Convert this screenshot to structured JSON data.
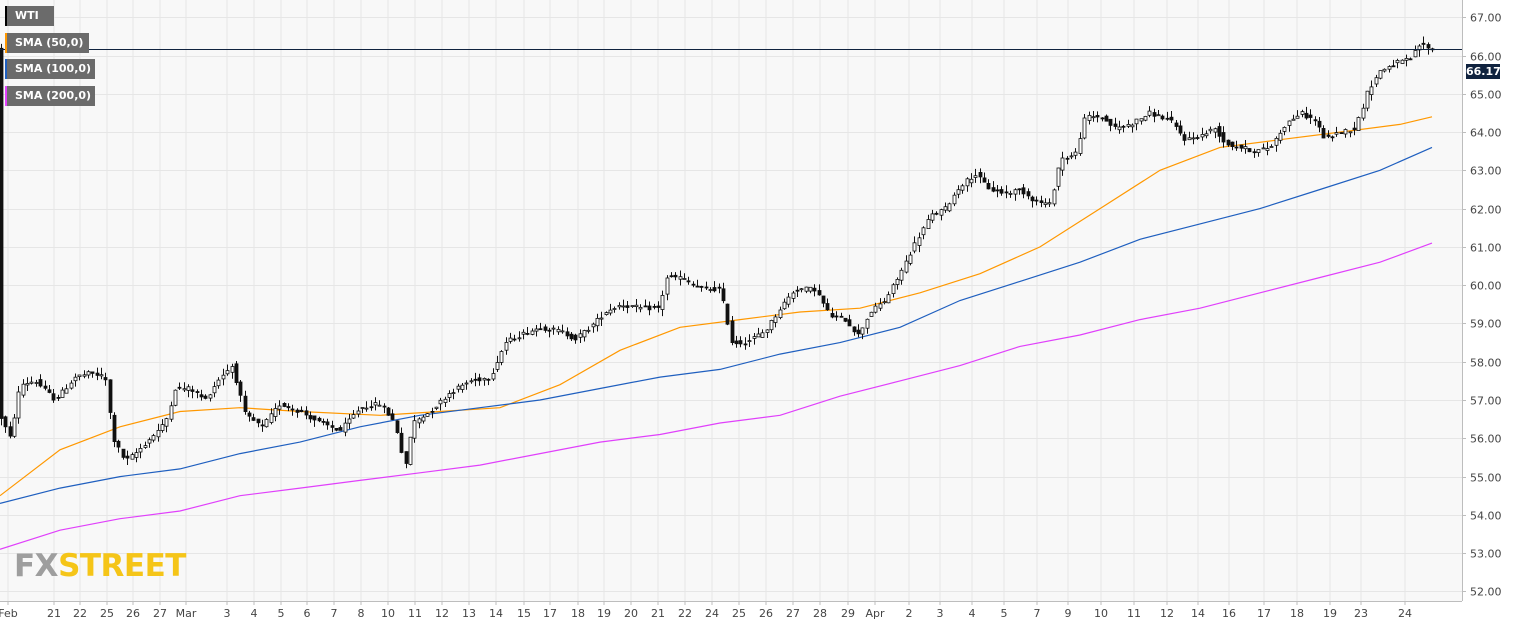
{
  "chart_data": {
    "type": "candlestick",
    "instrument": "WTI",
    "y_axis": {
      "ticks": [
        52.0,
        53.0,
        54.0,
        55.0,
        56.0,
        57.0,
        58.0,
        59.0,
        60.0,
        61.0,
        62.0,
        63.0,
        64.0,
        65.0,
        66.0,
        67.0
      ],
      "range": [
        51.75,
        67.45
      ],
      "side": "right"
    },
    "x_axis_labels": [
      "Feb",
      "21",
      "22",
      "25",
      "26",
      "27",
      "Mar",
      "3",
      "4",
      "5",
      "6",
      "7",
      "8",
      "10",
      "11",
      "12",
      "13",
      "14",
      "15",
      "17",
      "18",
      "19",
      "20",
      "21",
      "22",
      "24",
      "25",
      "26",
      "27",
      "28",
      "29",
      "Apr",
      "2",
      "3",
      "4",
      "5",
      "7",
      "9",
      "10",
      "11",
      "12",
      "14",
      "16",
      "17",
      "18",
      "19",
      "23",
      "24"
    ],
    "current_price": "66.17",
    "grid": true,
    "legend_position": "top-left",
    "legend": [
      {
        "label": "WTI",
        "color": "#000000"
      },
      {
        "label": "SMA (50,0)",
        "color": "#ff9800"
      },
      {
        "label": "SMA (100,0)",
        "color": "#1f5fbf"
      },
      {
        "label": "SMA (200,0)",
        "color": "#e040fb"
      }
    ],
    "anchors": [
      [
        0,
        56.6
      ],
      [
        10,
        56.0
      ],
      [
        20,
        57.4
      ],
      [
        35,
        57.5
      ],
      [
        55,
        57.0
      ],
      [
        75,
        57.6
      ],
      [
        90,
        57.7
      ],
      [
        105,
        57.6
      ],
      [
        113,
        56.0
      ],
      [
        125,
        55.4
      ],
      [
        135,
        55.6
      ],
      [
        150,
        56.0
      ],
      [
        165,
        56.4
      ],
      [
        175,
        57.3
      ],
      [
        190,
        57.3
      ],
      [
        205,
        57.0
      ],
      [
        220,
        57.6
      ],
      [
        232,
        57.9
      ],
      [
        245,
        56.6
      ],
      [
        262,
        56.3
      ],
      [
        280,
        56.9
      ],
      [
        300,
        56.7
      ],
      [
        320,
        56.4
      ],
      [
        340,
        56.2
      ],
      [
        360,
        56.8
      ],
      [
        380,
        56.9
      ],
      [
        395,
        56.4
      ],
      [
        405,
        55.2
      ],
      [
        412,
        56.4
      ],
      [
        430,
        56.7
      ],
      [
        450,
        57.2
      ],
      [
        470,
        57.5
      ],
      [
        490,
        57.6
      ],
      [
        505,
        58.5
      ],
      [
        520,
        58.7
      ],
      [
        540,
        58.9
      ],
      [
        560,
        58.8
      ],
      [
        575,
        58.6
      ],
      [
        590,
        58.9
      ],
      [
        605,
        59.3
      ],
      [
        620,
        59.5
      ],
      [
        640,
        59.4
      ],
      [
        660,
        59.4
      ],
      [
        665,
        60.2
      ],
      [
        680,
        60.2
      ],
      [
        700,
        59.9
      ],
      [
        720,
        59.9
      ],
      [
        732,
        58.5
      ],
      [
        745,
        58.5
      ],
      [
        765,
        58.8
      ],
      [
        780,
        59.4
      ],
      [
        795,
        59.9
      ],
      [
        815,
        59.9
      ],
      [
        830,
        59.2
      ],
      [
        845,
        59.1
      ],
      [
        858,
        58.7
      ],
      [
        870,
        59.3
      ],
      [
        885,
        59.6
      ],
      [
        900,
        60.3
      ],
      [
        915,
        61.1
      ],
      [
        930,
        61.8
      ],
      [
        945,
        62.0
      ],
      [
        960,
        62.6
      ],
      [
        975,
        62.9
      ],
      [
        990,
        62.5
      ],
      [
        1005,
        62.4
      ],
      [
        1020,
        62.5
      ],
      [
        1035,
        62.2
      ],
      [
        1050,
        62.1
      ],
      [
        1060,
        63.3
      ],
      [
        1075,
        63.4
      ],
      [
        1085,
        64.4
      ],
      [
        1100,
        64.4
      ],
      [
        1115,
        64.1
      ],
      [
        1130,
        64.2
      ],
      [
        1150,
        64.5
      ],
      [
        1170,
        64.3
      ],
      [
        1185,
        63.8
      ],
      [
        1200,
        63.9
      ],
      [
        1215,
        64.1
      ],
      [
        1225,
        63.7
      ],
      [
        1240,
        63.6
      ],
      [
        1255,
        63.5
      ],
      [
        1270,
        63.6
      ],
      [
        1285,
        64.2
      ],
      [
        1300,
        64.5
      ],
      [
        1315,
        64.3
      ],
      [
        1325,
        63.8
      ],
      [
        1340,
        64.0
      ],
      [
        1355,
        64.1
      ],
      [
        1368,
        65.1
      ],
      [
        1380,
        65.6
      ],
      [
        1395,
        65.8
      ],
      [
        1410,
        65.9
      ],
      [
        1420,
        66.3
      ],
      [
        1432,
        66.17
      ]
    ],
    "sma50": [
      [
        0,
        54.5
      ],
      [
        60,
        55.7
      ],
      [
        120,
        56.3
      ],
      [
        180,
        56.7
      ],
      [
        240,
        56.8
      ],
      [
        300,
        56.7
      ],
      [
        380,
        56.6
      ],
      [
        440,
        56.7
      ],
      [
        500,
        56.8
      ],
      [
        560,
        57.4
      ],
      [
        620,
        58.3
      ],
      [
        680,
        58.9
      ],
      [
        740,
        59.1
      ],
      [
        800,
        59.3
      ],
      [
        860,
        59.4
      ],
      [
        920,
        59.8
      ],
      [
        980,
        60.3
      ],
      [
        1040,
        61.0
      ],
      [
        1100,
        62.0
      ],
      [
        1160,
        63.0
      ],
      [
        1220,
        63.6
      ],
      [
        1280,
        63.8
      ],
      [
        1340,
        64.0
      ],
      [
        1400,
        64.2
      ],
      [
        1432,
        64.4
      ]
    ],
    "sma100": [
      [
        0,
        54.3
      ],
      [
        60,
        54.7
      ],
      [
        120,
        55.0
      ],
      [
        180,
        55.2
      ],
      [
        240,
        55.6
      ],
      [
        300,
        55.9
      ],
      [
        360,
        56.3
      ],
      [
        420,
        56.6
      ],
      [
        480,
        56.8
      ],
      [
        540,
        57.0
      ],
      [
        600,
        57.3
      ],
      [
        660,
        57.6
      ],
      [
        720,
        57.8
      ],
      [
        780,
        58.2
      ],
      [
        840,
        58.5
      ],
      [
        900,
        58.9
      ],
      [
        960,
        59.6
      ],
      [
        1020,
        60.1
      ],
      [
        1080,
        60.6
      ],
      [
        1140,
        61.2
      ],
      [
        1200,
        61.6
      ],
      [
        1260,
        62.0
      ],
      [
        1320,
        62.5
      ],
      [
        1380,
        63.0
      ],
      [
        1432,
        63.6
      ]
    ],
    "sma200": [
      [
        0,
        53.1
      ],
      [
        60,
        53.6
      ],
      [
        120,
        53.9
      ],
      [
        180,
        54.1
      ],
      [
        240,
        54.5
      ],
      [
        300,
        54.7
      ],
      [
        360,
        54.9
      ],
      [
        420,
        55.1
      ],
      [
        480,
        55.3
      ],
      [
        540,
        55.6
      ],
      [
        600,
        55.9
      ],
      [
        660,
        56.1
      ],
      [
        720,
        56.4
      ],
      [
        780,
        56.6
      ],
      [
        840,
        57.1
      ],
      [
        900,
        57.5
      ],
      [
        960,
        57.9
      ],
      [
        1020,
        58.4
      ],
      [
        1080,
        58.7
      ],
      [
        1140,
        59.1
      ],
      [
        1200,
        59.4
      ],
      [
        1260,
        59.8
      ],
      [
        1320,
        60.2
      ],
      [
        1380,
        60.6
      ],
      [
        1432,
        61.1
      ]
    ]
  },
  "watermark": {
    "fx": "FX",
    "street": "STREET"
  }
}
